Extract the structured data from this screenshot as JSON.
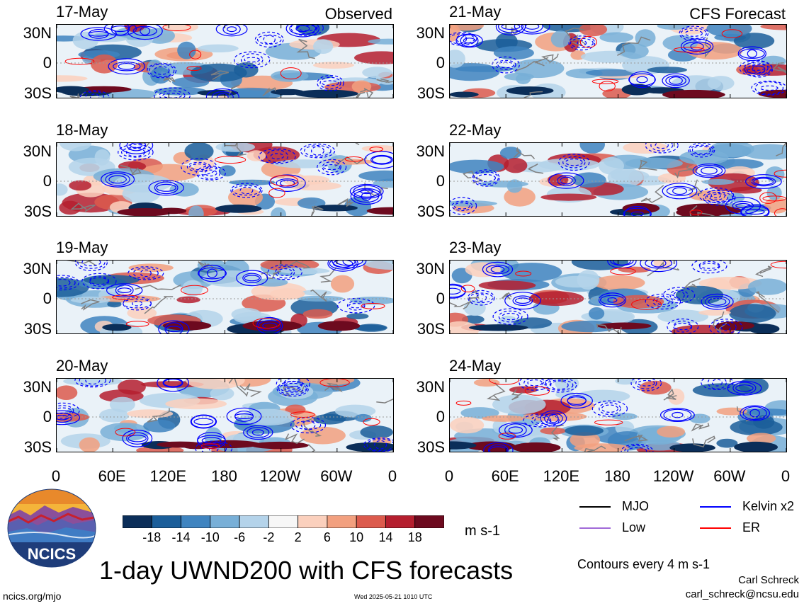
{
  "panels": [
    {
      "date": "17-May",
      "label": "Observed"
    },
    {
      "date": "18-May",
      "label": ""
    },
    {
      "date": "19-May",
      "label": ""
    },
    {
      "date": "20-May",
      "label": ""
    },
    {
      "date": "21-May",
      "label": "CFS Forecast"
    },
    {
      "date": "22-May",
      "label": ""
    },
    {
      "date": "23-May",
      "label": ""
    },
    {
      "date": "24-May",
      "label": ""
    }
  ],
  "lat_labels": [
    "30N",
    "0",
    "30S"
  ],
  "lon_labels": [
    "0",
    "60E",
    "120E",
    "180",
    "120W",
    "60W",
    "0"
  ],
  "colorbar": {
    "labels": [
      "-18",
      "-14",
      "-10",
      "-6",
      "-2",
      "2",
      "6",
      "10",
      "14",
      "18"
    ],
    "colors": [
      "#0b2e59",
      "#1b5e9a",
      "#3f84c0",
      "#78afd7",
      "#b4d3ea",
      "#f7f7f7",
      "#fbd0bd",
      "#f2a07f",
      "#dc5b4d",
      "#b51f2f",
      "#6d0a1f"
    ],
    "units": "m s-1"
  },
  "legend": [
    {
      "name": "MJO",
      "color": "#000000"
    },
    {
      "name": "Kelvin x2",
      "color": "#0000ff"
    },
    {
      "name": "Low",
      "color": "#a06ad8"
    },
    {
      "name": "ER",
      "color": "#ff0000"
    }
  ],
  "contour_note": "Contours every 4 m s-1",
  "logo_text": "NCICS",
  "main_title": "1-day UWND200 with CFS forecasts",
  "author": "Carl Schreck",
  "email": "carl_schreck@ncsu.edu",
  "website": "ncics.org/mjo",
  "timestamp": "Wed 2025-05-21 1010 UTC"
}
